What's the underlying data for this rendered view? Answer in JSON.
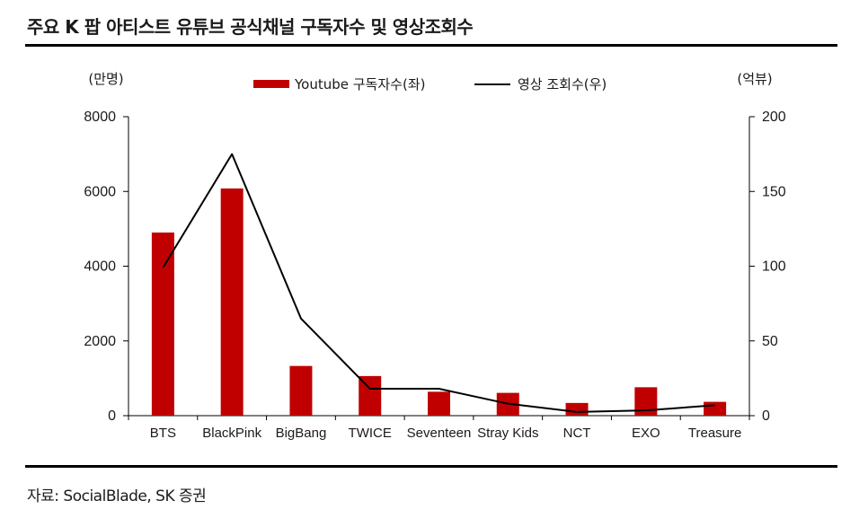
{
  "title": "주요 K 팝 아티스트 유튜브 공식채널 구독자수 및 영상조회수",
  "source": "자료: SocialBlade, SK 증권",
  "chart_data": {
    "type": "bar",
    "categories": [
      "BTS",
      "BlackPink",
      "BigBang",
      "TWICE",
      "Seventeen",
      "Stray Kids",
      "NCT",
      "EXO",
      "Treasure"
    ],
    "series": [
      {
        "name": "Youtube 구독자수(좌)",
        "type": "bar",
        "axis": "left",
        "color": "#c00000",
        "values": [
          4900,
          6080,
          1330,
          1060,
          640,
          610,
          340,
          760,
          370
        ]
      },
      {
        "name": "영상 조회수(우)",
        "type": "line",
        "axis": "right",
        "color": "#000000",
        "values": [
          99,
          175,
          65,
          18,
          18,
          8,
          2.5,
          3.5,
          7
        ]
      }
    ],
    "y_left": {
      "unit": "(만명)",
      "ylim": [
        0,
        8000
      ],
      "ticks": [
        "0",
        "2000",
        "4000",
        "6000",
        "8000"
      ]
    },
    "y_right": {
      "unit": "(억뷰)",
      "ylim": [
        0,
        200
      ],
      "ticks": [
        "0",
        "50",
        "100",
        "150",
        "200"
      ]
    },
    "legend_position": "top",
    "grid": false
  }
}
